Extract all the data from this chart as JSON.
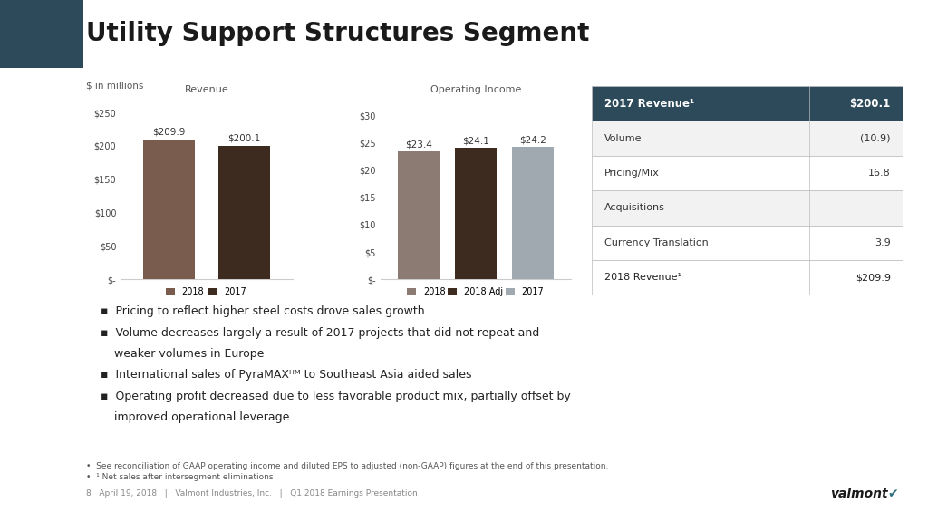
{
  "title": "Utility Support Structures Segment",
  "bg_color": "#ffffff",
  "subtitle": "$ in millions",
  "revenue_title": "Revenue",
  "rev_bars": [
    209.9,
    200.1
  ],
  "rev_labels": [
    "2018",
    "2017"
  ],
  "rev_colors": [
    "#7a5c4e",
    "#3d2b1f"
  ],
  "rev_bar_labels": [
    "$209.9",
    "$200.1"
  ],
  "rev_yticks": [
    0,
    50,
    100,
    150,
    200,
    250
  ],
  "rev_ytick_labels": [
    "$-",
    "$50",
    "$100",
    "$150",
    "$200",
    "$250"
  ],
  "rev_ylim": [
    0,
    270
  ],
  "oi_title": "Operating Income",
  "oi_bars": [
    23.4,
    24.1,
    24.2
  ],
  "oi_labels": [
    "2018",
    "2018 Adj",
    "2017"
  ],
  "oi_colors": [
    "#8c7b72",
    "#3d2b1f",
    "#a0a8b0"
  ],
  "oi_bar_labels": [
    "$23.4",
    "$24.1",
    "$24.2"
  ],
  "oi_yticks": [
    0,
    5,
    10,
    15,
    20,
    25,
    30
  ],
  "oi_ytick_labels": [
    "$-",
    "$5",
    "$10",
    "$15",
    "$20",
    "$25",
    "$30"
  ],
  "oi_ylim": [
    0,
    33
  ],
  "table_header_row": [
    "2017 Revenue¹",
    "$200.1"
  ],
  "table_rows": [
    [
      "Volume",
      "(10.9)"
    ],
    [
      "Pricing/Mix",
      "16.8"
    ],
    [
      "Acquisitions",
      "-"
    ],
    [
      "Currency Translation",
      "3.9"
    ]
  ],
  "table_footer_row": [
    "2018 Revenue¹",
    "$209.9"
  ],
  "table_header_bg": "#2d4a5a",
  "table_header_fg": "#ffffff",
  "table_row_bg1": "#f2f2f2",
  "table_row_bg2": "#ffffff",
  "bullet1": "Pricing to reflect higher steel costs drove sales growth",
  "bullet2a": "Volume decreases largely a result of 2017 projects that did not repeat and",
  "bullet2b": "weaker volumes in Europe",
  "bullet3": "International sales of PyraMAXᴴᴹ to Southeast Asia aided sales",
  "bullet4a": "Operating profit decreased due to less favorable product mix, partially offset by",
  "bullet4b": "improved operational leverage",
  "footnote1": "•  See reconciliation of GAAP operating income and diluted EPS to adjusted (non-GAAP) figures at the end of this presentation.",
  "footnote2": "•  ¹ Net sales after intersegment eliminations",
  "footer_left": "8   April 19, 2018   |   Valmont Industries, Inc.   |   Q1 2018 Earnings Presentation",
  "divider_color": "#cccccc",
  "teal_color": "#2d6e7e",
  "dark_teal": "#1a3a4a"
}
